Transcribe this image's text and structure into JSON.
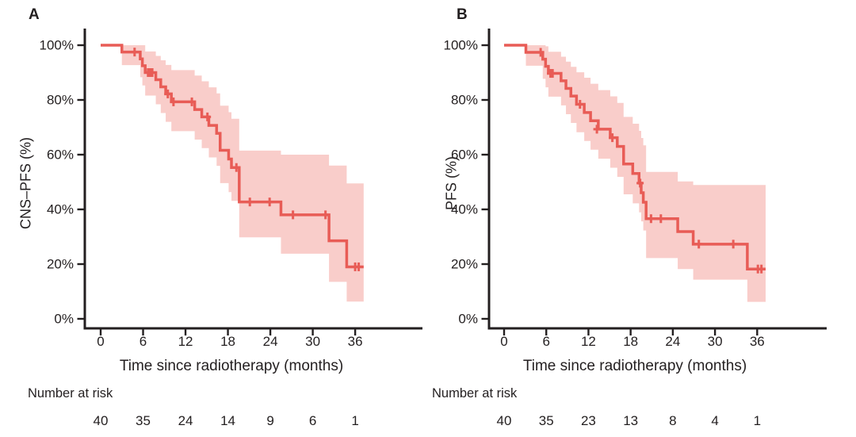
{
  "figure": {
    "background": "#ffffff",
    "text_color": "#231f20",
    "axis_color": "#231f20"
  },
  "chart_data": [
    {
      "type": "line",
      "subtype": "kaplan-meier-step",
      "panel_label": "A",
      "title": "",
      "ylabel": "CNS–PFS (%)",
      "xlabel": "Time since radiotherapy (months)",
      "legend": "none",
      "grid": false,
      "xlim": [
        0,
        36
      ],
      "ylim": [
        0,
        100
      ],
      "x_tick_values": [
        0,
        6,
        12,
        18,
        24,
        30,
        36
      ],
      "x_tick_labels": [
        "0",
        "6",
        "12",
        "18",
        "24",
        "30",
        "36"
      ],
      "y_tick_values": [
        0,
        20,
        40,
        60,
        80,
        100
      ],
      "y_tick_labels": [
        "0%",
        "20%",
        "40%",
        "60%",
        "80%",
        "100%"
      ],
      "line_color": "#e85c56",
      "band_color": "#f9cdca",
      "end_time": 37.2,
      "steps_time_percent": [
        [
          0,
          100
        ],
        [
          3,
          97.5
        ],
        [
          5.6,
          95
        ],
        [
          5.9,
          92.5
        ],
        [
          6.3,
          90
        ],
        [
          7.8,
          87.4
        ],
        [
          8.5,
          84.8
        ],
        [
          9.2,
          82.2
        ],
        [
          10,
          79.3
        ],
        [
          13.3,
          76.5
        ],
        [
          14.3,
          73.8
        ],
        [
          15.3,
          70.7
        ],
        [
          16.4,
          67.8
        ],
        [
          16.9,
          61.6
        ],
        [
          18.1,
          58.4
        ],
        [
          18.5,
          55.3
        ],
        [
          19.6,
          42.7
        ],
        [
          25.5,
          38
        ],
        [
          32.3,
          28.5
        ],
        [
          34.8,
          19
        ]
      ],
      "censor_marks_time_percent": [
        [
          4.8,
          97.5
        ],
        [
          6.7,
          90
        ],
        [
          7.0,
          90
        ],
        [
          7.3,
          90
        ],
        [
          9.5,
          82.2
        ],
        [
          10.3,
          79.3
        ],
        [
          12.9,
          79.3
        ],
        [
          15.1,
          73.8
        ],
        [
          19.2,
          55.3
        ],
        [
          21.1,
          42.7
        ],
        [
          23.9,
          42.7
        ],
        [
          27.2,
          38
        ],
        [
          31.8,
          38
        ],
        [
          36.0,
          19
        ],
        [
          36.5,
          19
        ]
      ],
      "confidence_band_time_lo_hi": [
        [
          0,
          100,
          100
        ],
        [
          3,
          92.7,
          100
        ],
        [
          5.6,
          88.3,
          100
        ],
        [
          5.9,
          85.3,
          100
        ],
        [
          6.3,
          81.6,
          97.7
        ],
        [
          7.8,
          78.4,
          96.1
        ],
        [
          8.5,
          75.2,
          94.5
        ],
        [
          9.2,
          72,
          92.8
        ],
        [
          10,
          68.6,
          90.9
        ],
        [
          13.3,
          65.5,
          88.9
        ],
        [
          14.3,
          62.4,
          86.8
        ],
        [
          15.3,
          59,
          84.6
        ],
        [
          16.4,
          55.9,
          82.4
        ],
        [
          16.9,
          49.6,
          77.9
        ],
        [
          18.1,
          46.3,
          75.5
        ],
        [
          18.5,
          43.1,
          73.1
        ],
        [
          19.6,
          29.8,
          61.5
        ],
        [
          25.5,
          23.8,
          60
        ],
        [
          32.3,
          13.5,
          56
        ],
        [
          34.8,
          6.3,
          49.5
        ]
      ],
      "number_at_risk_label": "Number at risk",
      "number_at_risk_times": [
        0,
        6,
        12,
        18,
        24,
        30,
        36
      ],
      "number_at_risk": [
        "40",
        "35",
        "24",
        "14",
        "9",
        "6",
        "1"
      ]
    },
    {
      "type": "line",
      "subtype": "kaplan-meier-step",
      "panel_label": "B",
      "title": "",
      "ylabel": "PFS (%)",
      "xlabel": "Time since radiotherapy (months)",
      "legend": "none",
      "grid": false,
      "xlim": [
        0,
        36
      ],
      "ylim": [
        0,
        100
      ],
      "x_tick_values": [
        0,
        6,
        12,
        18,
        24,
        30,
        36
      ],
      "x_tick_labels": [
        "0",
        "6",
        "12",
        "18",
        "24",
        "30",
        "36"
      ],
      "y_tick_values": [
        0,
        20,
        40,
        60,
        80,
        100
      ],
      "y_tick_labels": [
        "0%",
        "20%",
        "40%",
        "60%",
        "80%",
        "100%"
      ],
      "line_color": "#e85c56",
      "band_color": "#f9cdca",
      "end_time": 37.2,
      "steps_time_percent": [
        [
          0,
          100
        ],
        [
          3.1,
          97.4
        ],
        [
          5.5,
          94.9
        ],
        [
          5.9,
          92.3
        ],
        [
          6.3,
          89.7
        ],
        [
          8.1,
          87
        ],
        [
          8.8,
          84.2
        ],
        [
          9.5,
          81.4
        ],
        [
          10.3,
          78.4
        ],
        [
          11.4,
          75.4
        ],
        [
          12.3,
          72.4
        ],
        [
          13.4,
          69.3
        ],
        [
          15.1,
          66.2
        ],
        [
          16.1,
          63
        ],
        [
          17,
          56.6
        ],
        [
          18.3,
          53.1
        ],
        [
          19.2,
          49.6
        ],
        [
          19.5,
          46.1
        ],
        [
          19.8,
          42.6
        ],
        [
          20.2,
          36.6
        ],
        [
          24.7,
          31.9
        ],
        [
          26.9,
          27.3
        ],
        [
          34.6,
          18.2
        ]
      ],
      "censor_marks_time_percent": [
        [
          5.2,
          97.4
        ],
        [
          6.6,
          89.7
        ],
        [
          6.9,
          89.7
        ],
        [
          10.8,
          78.4
        ],
        [
          13.2,
          69.3
        ],
        [
          15.4,
          66.2
        ],
        [
          19.35,
          49.6
        ],
        [
          20.9,
          36.6
        ],
        [
          22.3,
          36.6
        ],
        [
          27.7,
          27.3
        ],
        [
          32.6,
          27.3
        ],
        [
          36.1,
          18.2
        ],
        [
          36.6,
          18.2
        ]
      ],
      "confidence_band_time_lo_hi": [
        [
          0,
          100,
          100
        ],
        [
          3.1,
          92.5,
          100
        ],
        [
          5.5,
          87.7,
          100
        ],
        [
          5.9,
          84.6,
          99.6
        ],
        [
          6.3,
          81.2,
          97.6
        ],
        [
          8.1,
          78,
          95.8
        ],
        [
          8.8,
          74.8,
          94
        ],
        [
          9.5,
          71.6,
          92.1
        ],
        [
          10.3,
          68.2,
          90.1
        ],
        [
          11.4,
          65,
          88.1
        ],
        [
          12.3,
          61.8,
          85.9
        ],
        [
          13.4,
          58.5,
          83.6
        ],
        [
          15.1,
          55.2,
          81.3
        ],
        [
          16.1,
          51.9,
          78.9
        ],
        [
          17,
          45.5,
          73.8
        ],
        [
          18.3,
          42.2,
          71.3
        ],
        [
          19.2,
          38.9,
          68.7
        ],
        [
          19.5,
          35.6,
          66.1
        ],
        [
          19.8,
          32.3,
          63.4
        ],
        [
          20.2,
          22.2,
          53.7
        ],
        [
          24.7,
          18.2,
          50.2
        ],
        [
          26.9,
          14.3,
          48.9
        ],
        [
          34.6,
          6.2,
          48.9
        ]
      ],
      "number_at_risk_label": "Number at risk",
      "number_at_risk_times": [
        0,
        6,
        12,
        18,
        24,
        30,
        36
      ],
      "number_at_risk": [
        "40",
        "35",
        "23",
        "13",
        "8",
        "4",
        "1"
      ]
    }
  ]
}
